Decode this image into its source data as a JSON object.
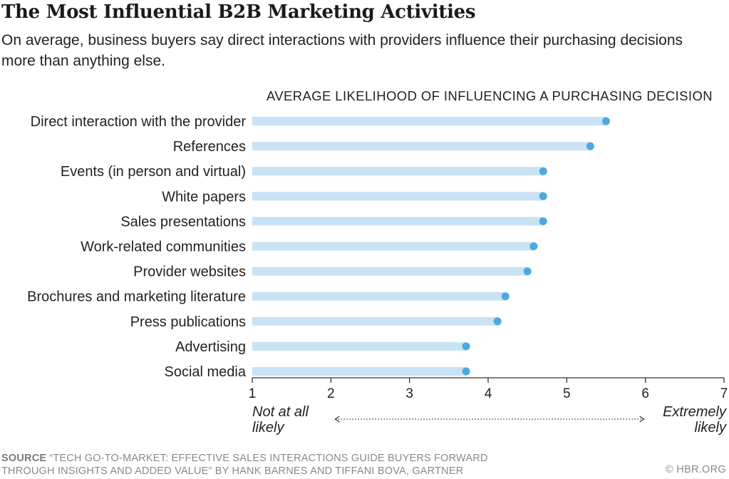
{
  "chart_data": {
    "type": "bar",
    "title": "The Most Influential B2B Marketing Activities",
    "subtitle": "On average, business buyers say direct interactions with providers influence their purchasing decisions more than anything else.",
    "axis_title": "AVERAGE LIKELIHOOD OF INFLUENCING A PURCHASING DECISION",
    "categories": [
      "Direct interaction with the provider",
      "References",
      "Events (in person and virtual)",
      "White papers",
      "Sales presentations",
      "Work-related communities",
      "Provider websites",
      "Brochures and marketing literature",
      "Press publications",
      "Advertising",
      "Social media"
    ],
    "values": [
      5.5,
      5.3,
      4.7,
      4.7,
      4.7,
      4.58,
      4.5,
      4.22,
      4.12,
      3.72,
      3.72
    ],
    "xlim": [
      1,
      7
    ],
    "xticks": [
      "1",
      "2",
      "3",
      "4",
      "5",
      "6",
      "7"
    ],
    "scale_low_label": [
      "Not at all",
      "likely"
    ],
    "scale_high_label": [
      "Extremely",
      "likely"
    ],
    "colors": {
      "bar": "#c9e2f4",
      "dot": "#4ba9e0",
      "axis": "#333333"
    }
  },
  "footer": {
    "source_heading": "SOURCE",
    "source_text": "“TECH GO-TO-MARKET: EFFECTIVE SALES INTERACTIONS GUIDE BUYERS FORWARD THROUGH INSIGHTS AND ADDED VALUE” BY HANK BARNES AND TIFFANI BOVA, GARTNER",
    "credit": "© HBR.ORG"
  }
}
